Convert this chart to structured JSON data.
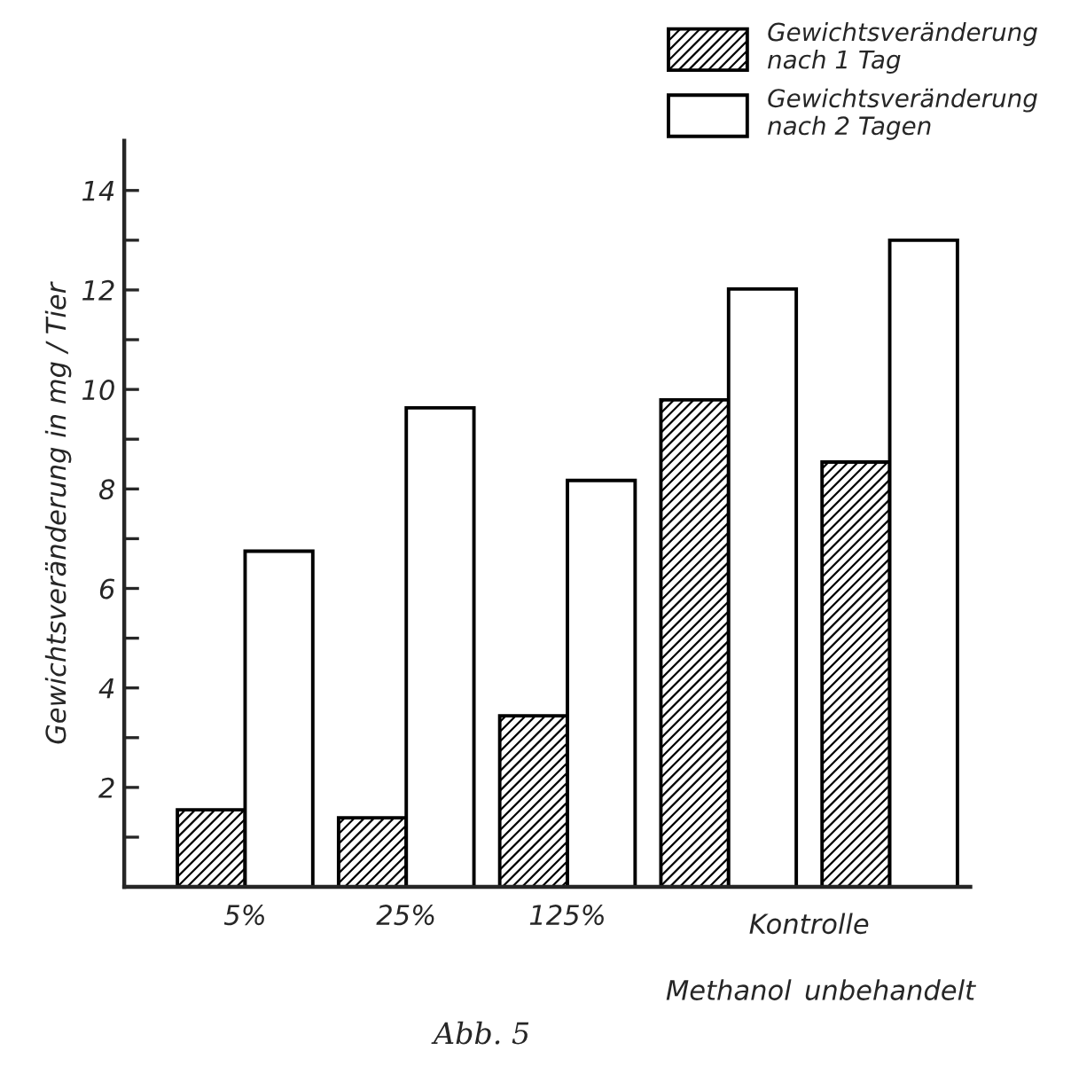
{
  "chart_data": {
    "type": "bar",
    "ylabel": "Gewichtsveränderung in mg / Tier",
    "categories": [
      "5%",
      "25%",
      "125%",
      "Methanol",
      "unbehandelt"
    ],
    "series": [
      {
        "name": "Gewichtsveränderung\nnach 1 Tag",
        "color": "#000000",
        "values": [
          1.55,
          1.39,
          3.44,
          9.79,
          8.54
        ]
      },
      {
        "name": "Gewichtsveränderung\nnach 2 Tagen",
        "color": "#000000",
        "values": [
          6.75,
          9.63,
          8.17,
          12.02,
          13.0
        ]
      }
    ],
    "ylim": [
      0,
      15
    ],
    "yticks": [
      {
        "value": 1,
        "label": null
      },
      2,
      {
        "value": 3,
        "label": null
      },
      4,
      {
        "value": 5,
        "label": null
      },
      6,
      {
        "value": 7,
        "label": null
      },
      8,
      {
        "value": 9,
        "label": null
      },
      10,
      {
        "value": 11,
        "label": null
      },
      12,
      {
        "value": 13,
        "label": null
      },
      14
    ],
    "legend": "top right",
    "annotations": [
      "Kontrolle",
      "Abb. 5"
    ]
  }
}
